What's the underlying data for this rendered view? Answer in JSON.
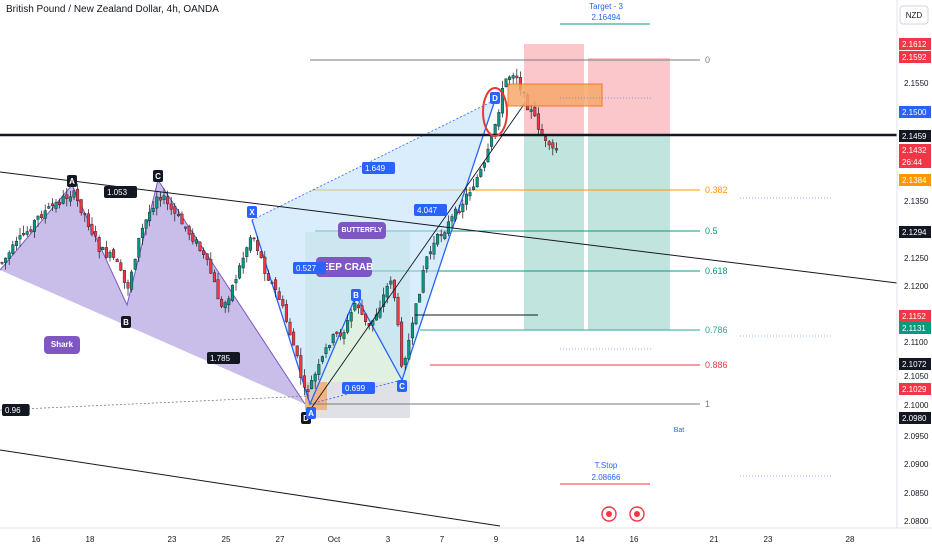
{
  "header": {
    "title": "British Pound / New Zealand Dollar, 4h, OANDA"
  },
  "currency_badge": "NZD",
  "x_ticks": [
    "16",
    "18",
    "23",
    "25",
    "27",
    "Oct",
    "3",
    "7",
    "9",
    "14",
    "16",
    "21",
    "23",
    "28"
  ],
  "y_ticks": [
    "2.1550",
    "2.1350",
    "2.1250",
    "2.1200",
    "2.1100",
    "2.1050",
    "2.1000",
    "2.0950",
    "2.0900",
    "2.0850",
    "2.0800"
  ],
  "price_labels": [
    {
      "text": "2.1612",
      "color": "#f23645"
    },
    {
      "text": "2.1592",
      "color": "#f23645"
    },
    {
      "text": "2.1500",
      "color": "#2962ff"
    },
    {
      "text": "2.1459",
      "color": "#131722"
    },
    {
      "text": "2.1432",
      "color": "#f23645"
    },
    {
      "text": "26:44",
      "color": "#f23645"
    },
    {
      "text": "2.1384",
      "color": "#ff9800"
    },
    {
      "text": "2.1294",
      "color": "#131722"
    },
    {
      "text": "2.1152",
      "color": "#f23645"
    },
    {
      "text": "2.1131",
      "color": "#089981"
    },
    {
      "text": "2.1072",
      "color": "#131722"
    },
    {
      "text": "2.1029",
      "color": "#f23645"
    },
    {
      "text": "2.0980",
      "color": "#131722"
    }
  ],
  "fib_levels": [
    {
      "label": "0",
      "color": "#787b86"
    },
    {
      "label": "0.382",
      "color": "#ff9800"
    },
    {
      "label": "0.5",
      "color": "#089981"
    },
    {
      "label": "0.618",
      "color": "#089981"
    },
    {
      "label": "0.786",
      "color": "#22ab94"
    },
    {
      "label": "0.886",
      "color": "#f23645"
    },
    {
      "label": "1",
      "color": "#787b86"
    }
  ],
  "pattern_points": [
    "A",
    "B",
    "C",
    "D",
    "X",
    "A",
    "B",
    "C",
    "D"
  ],
  "pattern_labels": {
    "shark": "Shark",
    "butterfly": "BUTTERFLY",
    "deep_crab": "DEEP CRAB"
  },
  "ratio_labels": [
    "1.053",
    "1.785",
    "0.96",
    "0.527",
    "1.649",
    "4.047",
    "0.699"
  ],
  "targets": {
    "target3_label": "Target - 3",
    "target3_value": "2.16494",
    "stop_label": "T.Stop",
    "stop_value": "2.08666",
    "bat": "Bat"
  },
  "colors": {
    "up": "#089981",
    "down": "#f23645",
    "pattern_fill": "#9c88d9",
    "blue_line": "#2962ff",
    "profit_zone": "#b2dfd6",
    "loss_zone": "#f9b4ba"
  }
}
